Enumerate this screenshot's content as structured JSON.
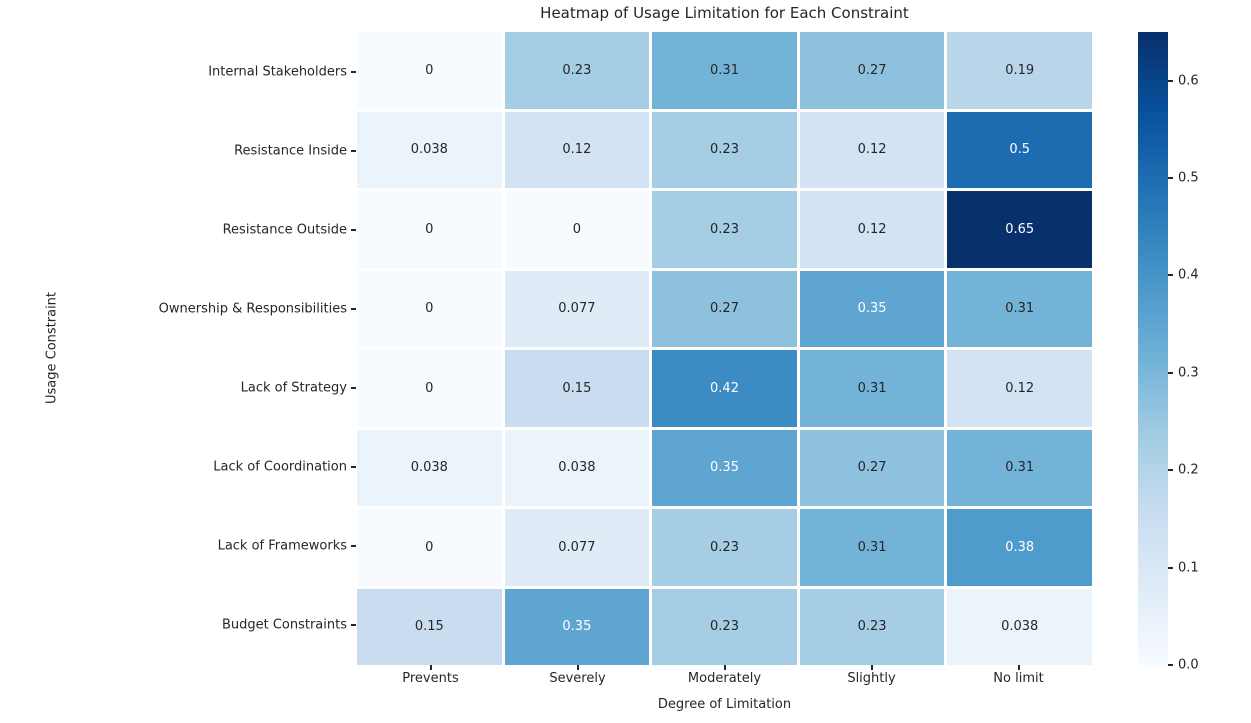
{
  "chart_data": {
    "type": "heatmap",
    "title": "Heatmap of Usage Limitation for Each Constraint",
    "xlabel": "Degree of Limitation",
    "ylabel": "Usage Constraint",
    "columns": [
      "Prevents",
      "Severely",
      "Moderately",
      "Slightly",
      "No limit"
    ],
    "rows": [
      "Internal Stakeholders",
      "Resistance Inside",
      "Resistance Outside",
      "Ownership & Responsibilities",
      "Lack of Strategy",
      "Lack of Coordination",
      "Lack of Frameworks",
      "Budget Constraints"
    ],
    "values": [
      [
        "0",
        "0.23",
        "0.31",
        "0.27",
        "0.19"
      ],
      [
        "0.038",
        "0.12",
        "0.23",
        "0.12",
        "0.5"
      ],
      [
        "0",
        "0",
        "0.23",
        "0.12",
        "0.65"
      ],
      [
        "0",
        "0.077",
        "0.27",
        "0.35",
        "0.31"
      ],
      [
        "0",
        "0.15",
        "0.42",
        "0.31",
        "0.12"
      ],
      [
        "0.038",
        "0.038",
        "0.35",
        "0.27",
        "0.31"
      ],
      [
        "0",
        "0.077",
        "0.23",
        "0.31",
        "0.38"
      ],
      [
        "0.15",
        "0.35",
        "0.23",
        "0.23",
        "0.038"
      ]
    ],
    "colormap": "Blues",
    "vmin": 0.0,
    "vmax": 0.65,
    "colorbar_ticks": [
      "0.0",
      "0.1",
      "0.2",
      "0.3",
      "0.4",
      "0.5",
      "0.6"
    ],
    "colors": {
      "low": "#f7fbff",
      "high": "#08306b",
      "cell_text_dark": "#262626",
      "cell_text_light": "#ffffff",
      "background": "#ffffff"
    }
  }
}
